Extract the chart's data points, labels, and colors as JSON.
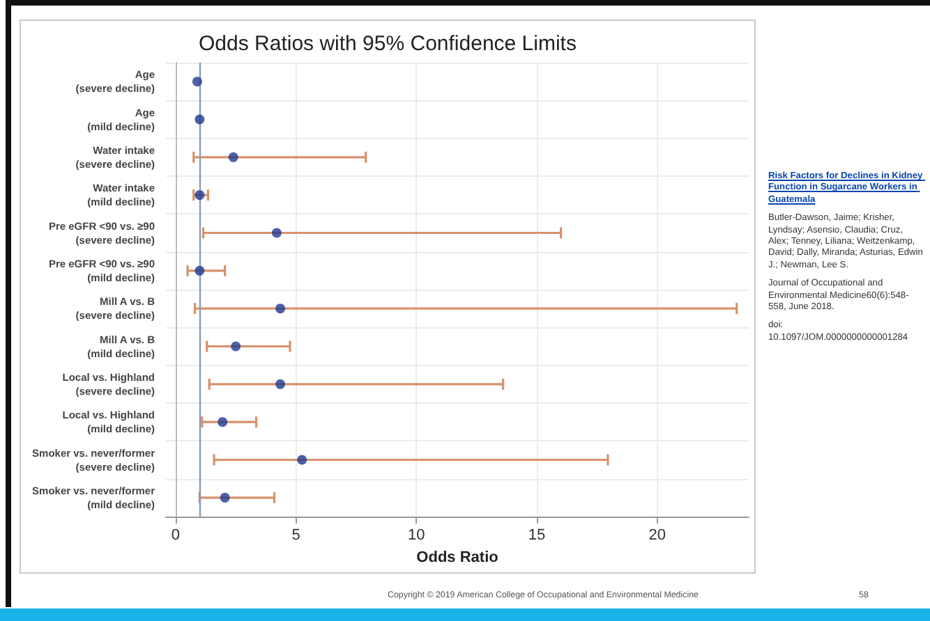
{
  "chart_data": {
    "type": "scatter",
    "title": "Odds Ratios with 95% Confidence Limits",
    "xlabel": "Odds Ratio",
    "orientation": "horizontal",
    "categories": [
      "Age\n(severe decline)",
      "Age\n(mild decline)",
      "Water intake\n(severe decline)",
      "Water intake\n(mild decline)",
      "Pre eGFR <90 vs. ≥90\n(severe decline)",
      "Pre eGFR <90 vs. ≥90\n(mild decline)",
      "Mill A vs. B\n(severe decline)",
      "Mill A vs. B\n(mild decline)",
      "Local vs. Highland\n(severe decline)",
      "Local vs. Highland\n(mild decline)",
      "Smoker vs. never/former\n(severe decline)",
      "Smoker vs. never/former\n(mild decline)"
    ],
    "series": [
      {
        "color": "#1f3a8f",
        "values": [
          0.9,
          1.0,
          2.4,
          1.0,
          4.2,
          1.0,
          4.35,
          2.5,
          4.35,
          1.95,
          5.25,
          2.05
        ],
        "errors": [
          null,
          null,
          [
            0.75,
            7.9
          ],
          [
            0.75,
            1.35
          ],
          [
            1.15,
            16.0
          ],
          [
            0.5,
            2.05
          ],
          [
            0.8,
            23.3
          ],
          [
            1.3,
            4.75
          ],
          [
            1.4,
            13.6
          ],
          [
            1.1,
            3.35
          ],
          [
            1.6,
            17.95
          ],
          [
            1.0,
            4.1
          ]
        ]
      }
    ],
    "xlim": [
      -0.4,
      23.8
    ],
    "xticks": [
      0,
      5,
      10,
      15,
      20
    ],
    "ref_lines": [
      {
        "axis": "x",
        "value": 1,
        "color": "#8a9bb5"
      }
    ],
    "grid": true,
    "marker": "circle",
    "annotations": [
      "Risk Factors for Declines in Kidney Function in Sugarcane Workers in Guatemala",
      "Butler-Dawson, Jaime; Krisher, Lyndsay; Asensio, Claudia; Cruz, Alex; Tenney, Liliana; Weitzenkamp, David; Dally, Miranda; Asturias, Edwin J.; Newman, Lee S.",
      "Journal of Occupational and Environmental Medicine60(6):548-558, June 2018.",
      "doi:\n10.1097/JOM.0000000000001284",
      "Copyright © 2019 American College of Occupational and Environmental Medicine",
      "58"
    ]
  }
}
